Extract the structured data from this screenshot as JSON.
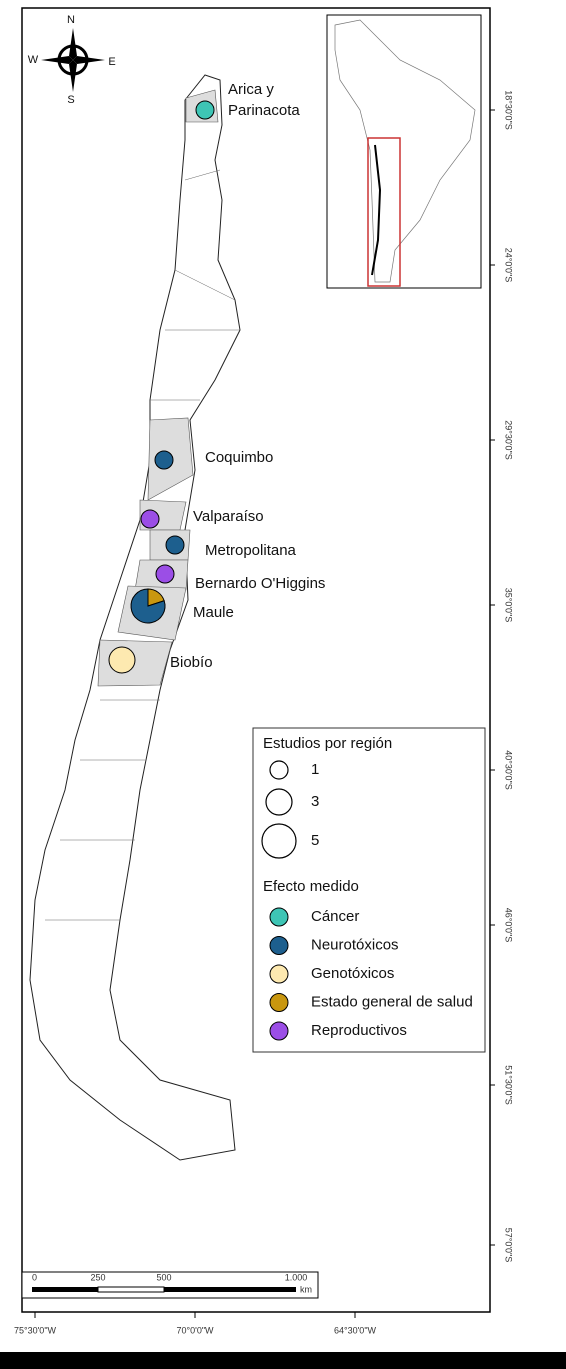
{
  "compass": {
    "north": "N",
    "south": "S",
    "east": "E",
    "west": "W"
  },
  "regions": [
    {
      "label": [
        "Arica y",
        "Parinacota"
      ],
      "slices": [
        {
          "color": "#3ec5b5",
          "studies": 1
        }
      ]
    },
    {
      "label": [
        "Coquimbo"
      ],
      "slices": [
        {
          "color": "#1d5f8e",
          "studies": 1
        }
      ]
    },
    {
      "label": [
        "Valparaíso"
      ],
      "slices": [
        {
          "color": "#9b4ee6",
          "studies": 1
        }
      ]
    },
    {
      "label": [
        "Metropolitana"
      ],
      "slices": [
        {
          "color": "#1d5f8e",
          "studies": 1
        }
      ]
    },
    {
      "label": [
        "Bernardo O'Higgins"
      ],
      "slices": [
        {
          "color": "#9b4ee6",
          "studies": 1
        }
      ]
    },
    {
      "label": [
        "Maule"
      ],
      "slices": [
        {
          "color": "#c9970f",
          "studies": 1
        },
        {
          "color": "#1d5f8e",
          "studies": 4
        }
      ]
    },
    {
      "label": [
        "Biobío"
      ],
      "slices": [
        {
          "color": "#fde9b0",
          "studies": 3
        }
      ]
    }
  ],
  "legend": {
    "size_title": "Estudios por región",
    "sizes": [
      1,
      3,
      5
    ],
    "effect_title": "Efecto medido",
    "effects": [
      {
        "label": "Cáncer",
        "color": "#3ec5b5"
      },
      {
        "label": "Neurotóxicos",
        "color": "#1d5f8e"
      },
      {
        "label": "Genotóxicos",
        "color": "#fde9b0"
      },
      {
        "label": "Estado general de salud",
        "color": "#c9970f"
      },
      {
        "label": "Reproductivos",
        "color": "#9b4ee6"
      }
    ]
  },
  "latitude_labels": [
    "18°30'0\"S",
    "24°0'0\"S",
    "29°30'0\"S",
    "35°0'0\"S",
    "40°30'0\"S",
    "46°0'0\"S",
    "51°30'0\"S",
    "57°0'0\"S"
  ],
  "longitude_labels": [
    "75°30'0\"W",
    "70°0'0\"W",
    "64°30'0\"W"
  ],
  "scale_bar": {
    "labels": [
      "0",
      "250",
      "500",
      "1.000"
    ],
    "unit": "km"
  }
}
